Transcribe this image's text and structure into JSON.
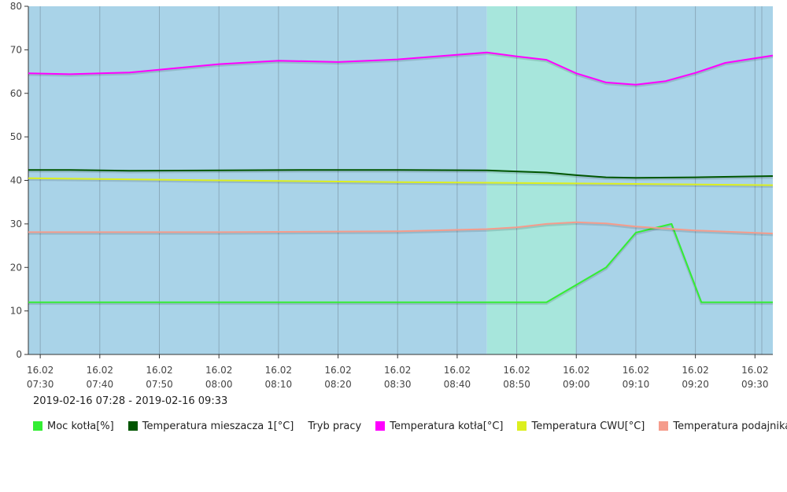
{
  "chart_data": {
    "type": "line",
    "ylim": [
      0,
      80
    ],
    "yticks": [
      0,
      10,
      20,
      30,
      40,
      50,
      60,
      70,
      80
    ],
    "ytick_labels": [
      "0",
      "10",
      "20",
      "30",
      "40",
      "50",
      "60",
      "70",
      "80"
    ],
    "xlim": [
      "07:28",
      "09:33"
    ],
    "xticks": [
      {
        "t": "07:30",
        "date": "16.02",
        "time": "07:30"
      },
      {
        "t": "07:40",
        "date": "16.02",
        "time": "07:40"
      },
      {
        "t": "07:50",
        "date": "16.02",
        "time": "07:50"
      },
      {
        "t": "08:00",
        "date": "16.02",
        "time": "08:00"
      },
      {
        "t": "08:10",
        "date": "16.02",
        "time": "08:10"
      },
      {
        "t": "08:20",
        "date": "16.02",
        "time": "08:20"
      },
      {
        "t": "08:30",
        "date": "16.02",
        "time": "08:30"
      },
      {
        "t": "08:40",
        "date": "16.02",
        "time": "08:40"
      },
      {
        "t": "08:50",
        "date": "16.02",
        "time": "08:50"
      },
      {
        "t": "09:00",
        "date": "16.02",
        "time": "09:00"
      },
      {
        "t": "09:10",
        "date": "16.02",
        "time": "09:10"
      },
      {
        "t": "09:20",
        "date": "16.02",
        "time": "09:20"
      },
      {
        "t": "09:30",
        "date": "16.02",
        "time": "09:30"
      }
    ],
    "grid": true,
    "bands": [
      {
        "from": "07:28",
        "to": "08:45",
        "color": "#a9d3e8"
      },
      {
        "from": "08:45",
        "to": "09:00",
        "color": "#a7e6dc"
      },
      {
        "from": "09:00",
        "to": "09:33",
        "color": "#a9d3e8"
      }
    ],
    "series": [
      {
        "name": "Moc kotła[%]",
        "color": "#33ee33",
        "x": [
          "07:28",
          "08:00",
          "08:30",
          "08:55",
          "09:05",
          "09:10",
          "09:16",
          "09:21",
          "09:33"
        ],
        "y": [
          12,
          12,
          12,
          12,
          20,
          28,
          30,
          12,
          12
        ]
      },
      {
        "name": "Temperatura mieszacza 1[°C]",
        "color": "#005500",
        "x": [
          "07:28",
          "07:35",
          "07:45",
          "08:00",
          "08:15",
          "08:30",
          "08:45",
          "08:55",
          "09:00",
          "09:05",
          "09:10",
          "09:20",
          "09:33"
        ],
        "y": [
          42.4,
          42.4,
          42.2,
          42.3,
          42.4,
          42.4,
          42.3,
          41.8,
          41.2,
          40.7,
          40.6,
          40.7,
          41.0
        ]
      },
      {
        "name": "Temperatura kotła[°C]",
        "color": "#ff00ff",
        "x": [
          "07:28",
          "07:35",
          "07:45",
          "08:00",
          "08:10",
          "08:20",
          "08:30",
          "08:45",
          "08:50",
          "08:55",
          "09:00",
          "09:05",
          "09:10",
          "09:15",
          "09:20",
          "09:25",
          "09:33"
        ],
        "y": [
          64.6,
          64.4,
          64.8,
          66.7,
          67.5,
          67.2,
          67.8,
          69.4,
          68.5,
          67.7,
          64.6,
          62.5,
          62.0,
          62.8,
          64.7,
          67.0,
          68.7
        ]
      },
      {
        "name": "Temperatura CWU[°C]",
        "color": "#dcef1f",
        "x": [
          "07:28",
          "08:00",
          "08:30",
          "09:00",
          "09:33"
        ],
        "y": [
          40.5,
          40.0,
          39.6,
          39.3,
          38.9
        ]
      },
      {
        "name": "Temperatura podajnika[°C]",
        "color": "#f59c8c",
        "x": [
          "07:28",
          "08:00",
          "08:30",
          "08:45",
          "08:50",
          "08:55",
          "09:00",
          "09:05",
          "09:10",
          "09:20",
          "09:33"
        ],
        "y": [
          28.1,
          28.1,
          28.3,
          28.8,
          29.2,
          30.0,
          30.4,
          30.1,
          29.4,
          28.5,
          27.8
        ]
      }
    ],
    "legend_placement": "bottom"
  },
  "time_range": "2019-02-16 07:28 - 2019-02-16 09:33",
  "legend": [
    {
      "label": "Moc kotła[%]",
      "color": "#33ee33",
      "has_swatch": true
    },
    {
      "label": "Temperatura mieszacza 1[°C]",
      "color": "#005500",
      "has_swatch": true
    },
    {
      "label": "Tryb pracy",
      "color": "",
      "has_swatch": false
    },
    {
      "label": "Temperatura kotła[°C]",
      "color": "#ff00ff",
      "has_swatch": true
    },
    {
      "label": "Temperatura CWU[°C]",
      "color": "#dcef1f",
      "has_swatch": true
    },
    {
      "label": "Temperatura podajnika[°C]",
      "color": "#f59c8c",
      "has_swatch": true
    }
  ]
}
